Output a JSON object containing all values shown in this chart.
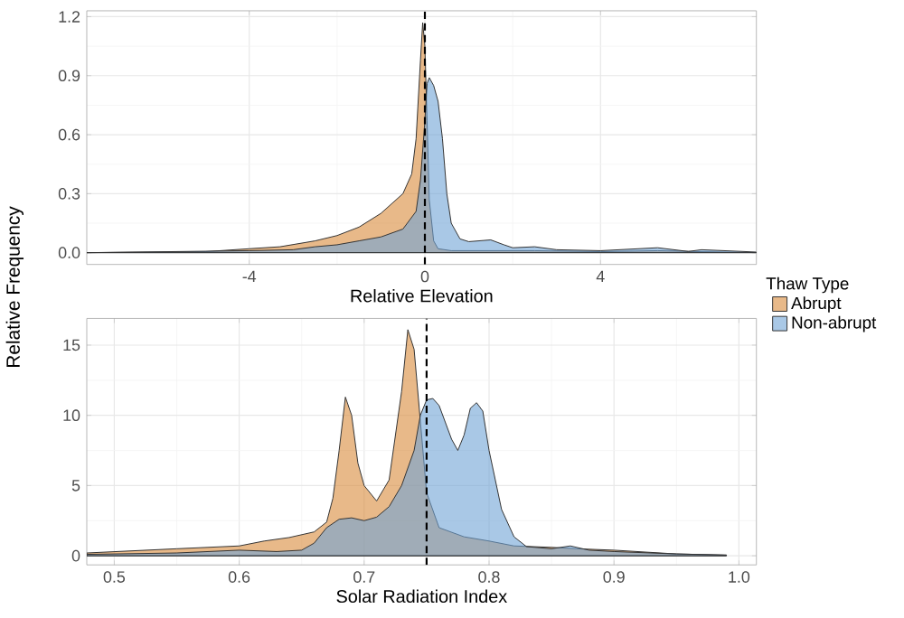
{
  "chart_data": [
    {
      "type": "area",
      "xlabel": "Relative Elevation",
      "ylabel": "Relative Frequency",
      "legend_title": "Thaw Type",
      "legend": "right",
      "grid": true,
      "xlim": [
        -7.7,
        7.55
      ],
      "ylim": [
        -0.06,
        1.23
      ],
      "xticks": [
        -4,
        0,
        4
      ],
      "yticks": [
        {
          "value": 0,
          "label": "0.0"
        },
        0.3,
        0.6,
        0.9,
        1.2
      ],
      "ref_lines": [
        {
          "axis": "x",
          "value": 0,
          "line_style": "dashed",
          "color": "#000000"
        }
      ],
      "series": [
        {
          "name": "Abrupt",
          "color": "#d98a3a",
          "x": [
            -7.7,
            -5,
            -4,
            -3.3,
            -2.5,
            -2,
            -1.5,
            -1,
            -0.5,
            -0.3,
            -0.2,
            -0.1,
            -0.05,
            0,
            0.05,
            0.1,
            0.2,
            0.3,
            0.6,
            1.5,
            2.5,
            4,
            5.3,
            6.3,
            7.55
          ],
          "values": [
            0,
            0.005,
            0.02,
            0.03,
            0.06,
            0.087,
            0.13,
            0.2,
            0.3,
            0.4,
            0.58,
            0.98,
            1.17,
            1.05,
            0.67,
            0.27,
            0.06,
            0.02,
            0.01,
            0.01,
            0.01,
            0.005,
            0.01,
            0.005,
            0
          ]
        },
        {
          "name": "Non-abrupt",
          "color": "#6fa3d6",
          "x": [
            -7.7,
            -4,
            -3,
            -2.5,
            -2,
            -1.5,
            -1,
            -0.5,
            -0.2,
            -0.1,
            0,
            0.05,
            0.1,
            0.2,
            0.3,
            0.4,
            0.5,
            0.6,
            0.8,
            1,
            1.5,
            1.8,
            2,
            2.5,
            3,
            4,
            5.3,
            6,
            6.3,
            7.55
          ],
          "values": [
            0,
            0.01,
            0.015,
            0.03,
            0.04,
            0.06,
            0.08,
            0.12,
            0.21,
            0.37,
            0.67,
            0.86,
            0.89,
            0.85,
            0.77,
            0.58,
            0.3,
            0.15,
            0.07,
            0.056,
            0.065,
            0.04,
            0.025,
            0.03,
            0.015,
            0.01,
            0.025,
            0.006,
            0.015,
            0.003
          ]
        }
      ]
    },
    {
      "type": "area",
      "xlabel": "Solar Radiation Index",
      "grid": true,
      "xlim": [
        0.478,
        1.014
      ],
      "ylim": [
        -0.65,
        16.9
      ],
      "xticks": [
        0.5,
        0.6,
        0.7,
        0.8,
        0.9,
        {
          "value": 1,
          "label": "1.0"
        }
      ],
      "yticks": [
        0,
        5,
        10,
        15
      ],
      "ref_lines": [
        {
          "axis": "x",
          "value": 0.75,
          "line_style": "dashed",
          "color": "#000000"
        }
      ],
      "series": [
        {
          "color": "#d98a3a",
          "x": [
            0.478,
            0.55,
            0.6,
            0.62,
            0.64,
            0.66,
            0.67,
            0.675,
            0.68,
            0.685,
            0.69,
            0.695,
            0.7,
            0.71,
            0.72,
            0.73,
            0.735,
            0.74,
            0.745,
            0.75,
            0.76,
            0.78,
            0.8,
            0.82,
            0.85,
            0.87,
            0.9,
            0.95,
            0.99
          ],
          "values": [
            0.2,
            0.5,
            0.7,
            1.05,
            1.3,
            1.7,
            2.4,
            4.1,
            7.5,
            11.3,
            10.0,
            6.6,
            5.0,
            3.9,
            5.4,
            11.7,
            16.1,
            14.7,
            9.6,
            4.5,
            2.0,
            1.35,
            1.05,
            0.7,
            0.6,
            0.5,
            0.4,
            0.13,
            0.05
          ]
        },
        {
          "color": "#6fa3d6",
          "x": [
            0.478,
            0.55,
            0.6,
            0.63,
            0.65,
            0.66,
            0.67,
            0.68,
            0.69,
            0.7,
            0.71,
            0.72,
            0.73,
            0.74,
            0.745,
            0.75,
            0.755,
            0.76,
            0.77,
            0.775,
            0.78,
            0.785,
            0.79,
            0.795,
            0.8,
            0.81,
            0.82,
            0.83,
            0.85,
            0.865,
            0.88,
            0.9,
            0.95,
            0.99
          ],
          "values": [
            0.1,
            0.2,
            0.4,
            0.3,
            0.4,
            0.9,
            2.0,
            2.6,
            2.7,
            2.5,
            2.75,
            3.5,
            5.0,
            7.5,
            10.0,
            11.1,
            11.2,
            10.7,
            8.3,
            7.5,
            8.6,
            10.5,
            10.9,
            10.3,
            7.5,
            3.3,
            1.35,
            0.65,
            0.5,
            0.7,
            0.4,
            0.3,
            0.13,
            0.05
          ]
        }
      ]
    }
  ]
}
